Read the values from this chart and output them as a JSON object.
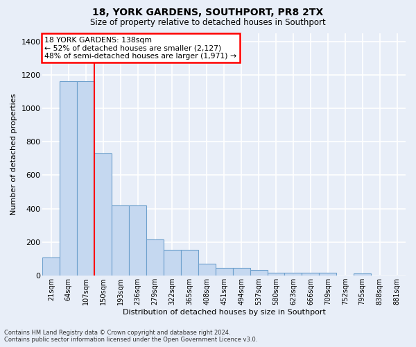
{
  "title": "18, YORK GARDENS, SOUTHPORT, PR8 2TX",
  "subtitle": "Size of property relative to detached houses in Southport",
  "xlabel": "Distribution of detached houses by size in Southport",
  "ylabel": "Number of detached properties",
  "categories": [
    "21sqm",
    "64sqm",
    "107sqm",
    "150sqm",
    "193sqm",
    "236sqm",
    "279sqm",
    "322sqm",
    "365sqm",
    "408sqm",
    "451sqm",
    "494sqm",
    "537sqm",
    "580sqm",
    "623sqm",
    "666sqm",
    "709sqm",
    "752sqm",
    "795sqm",
    "838sqm",
    "881sqm"
  ],
  "values": [
    108,
    1160,
    1160,
    730,
    420,
    420,
    215,
    155,
    155,
    72,
    48,
    48,
    32,
    18,
    18,
    18,
    18,
    0,
    15,
    0,
    0
  ],
  "bar_color": "#c5d8f0",
  "bar_edge_color": "#6da0cc",
  "fig_bg": "#e8eef8",
  "ax_bg": "#e8eef8",
  "grid_color": "#ffffff",
  "ylim": [
    0,
    1450
  ],
  "yticks": [
    0,
    200,
    400,
    600,
    800,
    1000,
    1200,
    1400
  ],
  "vline_x": 2.5,
  "ann_line1": "18 YORK GARDENS: 138sqm",
  "ann_line2": "← 52% of detached houses are smaller (2,127)",
  "ann_line3": "48% of semi-detached houses are larger (1,971) →",
  "footer1": "Contains HM Land Registry data © Crown copyright and database right 2024.",
  "footer2": "Contains public sector information licensed under the Open Government Licence v3.0."
}
